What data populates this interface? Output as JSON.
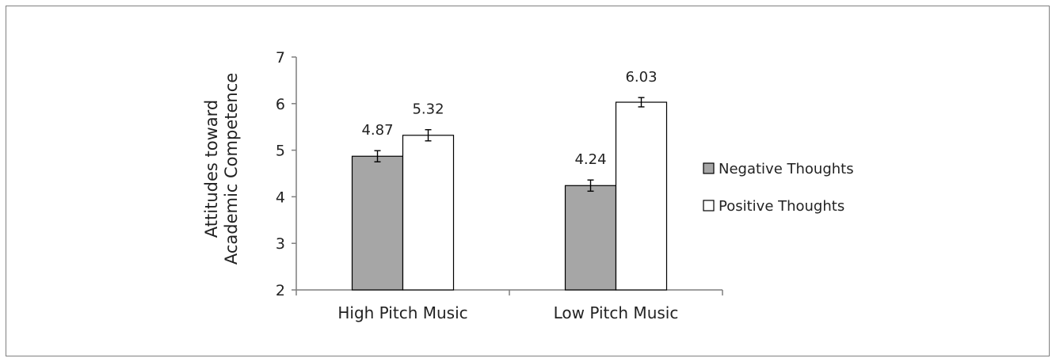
{
  "chart_data": {
    "type": "bar",
    "categories": [
      "High Pitch Music",
      "Low Pitch Music"
    ],
    "series": [
      {
        "name": "Negative Thoughts",
        "values": [
          4.87,
          4.24
        ],
        "errors": [
          0.12,
          0.12
        ],
        "color": "#a6a6a6"
      },
      {
        "name": "Positive Thoughts",
        "values": [
          5.32,
          6.03
        ],
        "errors": [
          0.12,
          0.1
        ],
        "color": "#ffffff"
      }
    ],
    "data_labels": [
      "4.87",
      "5.32",
      "4.24",
      "6.03"
    ],
    "ylabel_lines": [
      "Attitudes toward",
      "Academic Competence"
    ],
    "ylim": [
      2,
      7
    ],
    "yticks": [
      2,
      3,
      4,
      5,
      6,
      7
    ],
    "grid": false,
    "legend_position": "right"
  }
}
